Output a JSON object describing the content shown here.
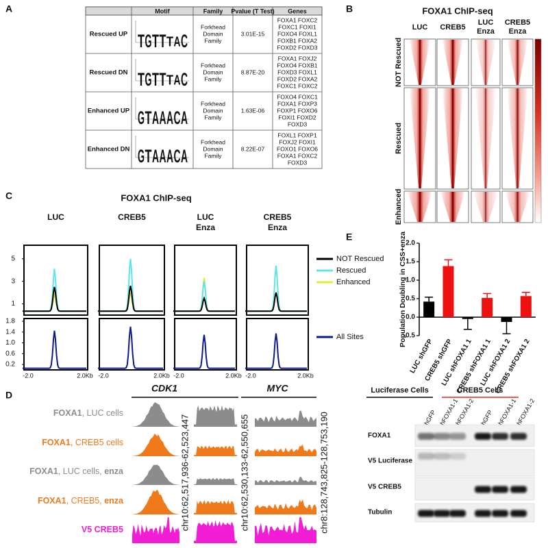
{
  "panel_labels": [
    "A",
    "B",
    "C",
    "D",
    "E"
  ],
  "panel_a": {
    "headers": [
      "Motif",
      "Family",
      "Pvalue (T Test)",
      "Genes"
    ],
    "rows": [
      {
        "label": "Rescued UP",
        "motif": [
          "T",
          "G",
          "T",
          "T",
          "T",
          "A",
          "C"
        ],
        "family": [
          "Forkhead",
          "Domain",
          "Family"
        ],
        "pvalue": "3.01E-15",
        "genes": [
          "FOXA1 FOXC2",
          "FOXC1 FOXI1",
          "FOXO4 FOXL1",
          "FOXB1 FOXA2",
          "FOXD2 FOXD3"
        ]
      },
      {
        "label": "Rescued DN",
        "motif": [
          "T",
          "G",
          "T",
          "T",
          "T",
          "A",
          "C"
        ],
        "family": [
          "Forkhead",
          "Domain",
          "Family"
        ],
        "pvalue": "8.87E-20",
        "genes": [
          "FOXA1 FOXJ2",
          "FOXO4 FOXB1",
          "FOXD3 FOXL1",
          "FOXD2 FOXA2",
          "FOXC1 FOXC2"
        ]
      },
      {
        "label": "Enhanced UP",
        "motif": [
          "G",
          "T",
          "A",
          "A",
          "A",
          "C",
          "A"
        ],
        "family": [
          "Forkhead",
          "Domain",
          "Family"
        ],
        "pvalue": "1.63E-06",
        "genes": [
          "FOXO4 FOXC1",
          "FOXA1 FOXP3",
          "FOXP1 FOXO6",
          "FOXI1 FOXD2",
          "FOXD3"
        ]
      },
      {
        "label": "Enhanced DN",
        "motif": [
          "G",
          "T",
          "A",
          "A",
          "A",
          "C",
          "A"
        ],
        "family": [
          "Forkhead",
          "Domain",
          "Family"
        ],
        "pvalue": "8.22E-07",
        "genes": [
          "FOXL1 FOXP1",
          "FOXJ2 FOXI1",
          "FOXO1 FOXO6",
          "FOXA1 FOXC2",
          "FOXD3"
        ]
      }
    ]
  },
  "panel_b": {
    "title": "FOXA1 ChIP-seq",
    "columns": [
      [
        "LUC"
      ],
      [
        "CREB5"
      ],
      [
        "LUC",
        "Enza"
      ],
      [
        "CREB5",
        "Enza"
      ]
    ],
    "rows": [
      "NOT Rescued",
      "Rescued",
      "Enhanced"
    ]
  },
  "chart_data": [
    {
      "type": "peak",
      "title": "FOXA1 ChIP-seq",
      "facets": [
        [
          "LUC"
        ],
        [
          "CREB5"
        ],
        [
          "LUC",
          "Enza"
        ],
        [
          "CREB5",
          "Enza"
        ]
      ],
      "series": [
        {
          "name": "NOT Rescued",
          "color": "#000000",
          "values": [
            2.5,
            2.6,
            1.5,
            2.0
          ]
        },
        {
          "name": "Rescued",
          "color": "#5fe3f0",
          "values": [
            4.1,
            5.0,
            3.0,
            4.4
          ]
        },
        {
          "name": "Enhanced",
          "color": "#e8ea3a",
          "values": [
            1.8,
            2.0,
            3.3,
            4.3
          ]
        }
      ],
      "ylim": [
        0,
        6.2
      ],
      "yticks": [
        1,
        3,
        5
      ]
    },
    {
      "type": "peak",
      "series": [
        {
          "name": "All Sites",
          "color": "#0b1a8c",
          "values": [
            1.45,
            1.6,
            1.3,
            1.35
          ]
        }
      ],
      "x_labels": [
        "-2.0",
        "2.0Kb"
      ],
      "ylim": [
        0,
        1.9
      ],
      "yticks": [
        0.2,
        0.6,
        {
          "value": 1,
          "label": "1.0"
        },
        1.4,
        1.8
      ]
    },
    {
      "type": "bar",
      "ylabel": "Population Doubling in CSS+enza",
      "categories": [
        "LUC shGFP",
        "CREB5 shGFP",
        "LUC shFOXA1 1",
        "CREB5 shFOXA1 1",
        "LUC shFOXA1 2",
        "CREB5 shFOXA1 2"
      ],
      "values": [
        0.42,
        1.38,
        -0.05,
        0.52,
        -0.13,
        0.57
      ],
      "errors": [
        0.12,
        0.17,
        0.28,
        0.12,
        0.32,
        0.1
      ],
      "colors": [
        "#000000",
        "#ee1111",
        "#000000",
        "#ee1111",
        "#000000",
        "#ee1111"
      ],
      "ylim": [
        -0.5,
        2.0
      ],
      "yticks": [
        -0.5,
        {
          "value": 0,
          "label": "0.0"
        },
        0.5,
        {
          "value": 1,
          "label": "1.0"
        },
        1.5,
        {
          "value": 2,
          "label": "2.0"
        }
      ]
    }
  ],
  "panel_d": {
    "genes": [
      "CDK1",
      "MYC"
    ],
    "coordinates": [
      "chr10:62,517,936-62,523,447",
      "chr10:62,530,133-62,550,655",
      "chr8:128,743,825-128,753,190"
    ],
    "tracks": [
      {
        "color": "#8c8c8c",
        "label": [
          {
            "text": "FOXA1",
            "bold": true
          },
          {
            "text": ", LUC cells",
            "bold": false
          }
        ]
      },
      {
        "color": "#f07a1a",
        "label": [
          {
            "text": "FOXA1",
            "bold": true
          },
          {
            "text": ", CREB5 cells",
            "bold": false
          }
        ]
      },
      {
        "color": "#8c8c8c",
        "label": [
          {
            "text": "FOXA1",
            "bold": true
          },
          {
            "text": ", LUC cells, ",
            "bold": false
          },
          {
            "text": "enza",
            "bold": true
          }
        ]
      },
      {
        "color": "#f07a1a",
        "label": [
          {
            "text": "FOXA1",
            "bold": true
          },
          {
            "text": ", CREB5, ",
            "bold": false
          },
          {
            "text": "enza",
            "bold": true
          }
        ]
      },
      {
        "color": "#f21ed6",
        "label": [
          {
            "text": "V5 CREB5",
            "bold": true
          }
        ]
      }
    ]
  },
  "blot": {
    "groups": [
      {
        "name": "Luciferase Cells",
        "color": "#000000"
      },
      {
        "name": "CREB5 Cells",
        "color": "#ee2222"
      }
    ],
    "lanes": [
      "shGFP",
      "shFOXA1-1",
      "shFOXA1-2",
      "shGFP",
      "shFOXA1-1",
      "shFOXA1-2"
    ],
    "rows": [
      "FOXA1",
      "V5 Luciferase",
      "V5 CREB5",
      "Tubulin"
    ]
  }
}
